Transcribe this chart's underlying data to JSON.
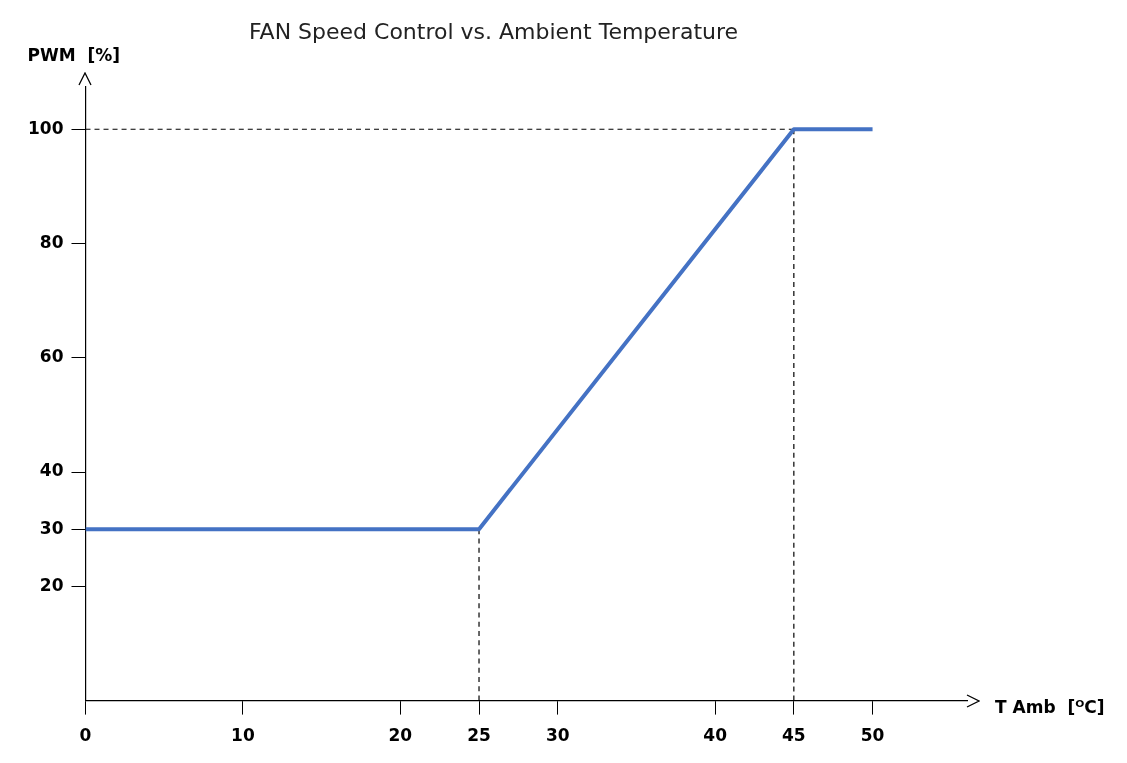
{
  "chart_data": {
    "type": "line",
    "title": "FAN Speed Control vs. Ambient Temperature",
    "xlabel": "T Amb  [ᴼC]",
    "ylabel": "PWM  [%]",
    "series": [
      {
        "color": "#4472c4",
        "x": [
          0,
          25,
          45,
          50
        ],
        "values": [
          30,
          30,
          100,
          100
        ]
      },
      {
        "color": "#000000",
        "line_style": "dashed",
        "x": [
          25,
          25
        ],
        "values": [
          0,
          30
        ]
      },
      {
        "color": "#000000",
        "line_style": "dashed",
        "x": [
          45,
          45
        ],
        "values": [
          0,
          100
        ]
      },
      {
        "color": "#000000",
        "line_style": "dashed",
        "x": [
          0,
          45
        ],
        "values": [
          100,
          100
        ]
      }
    ],
    "xlim": [
      0,
      56
    ],
    "xticks": [
      0,
      10,
      20,
      25,
      30,
      40,
      45,
      50
    ],
    "ylim": [
      0,
      107.5
    ],
    "yticks": [
      20,
      30,
      40,
      60,
      80,
      100
    ],
    "grid": false,
    "legend": false,
    "marker": "none"
  }
}
